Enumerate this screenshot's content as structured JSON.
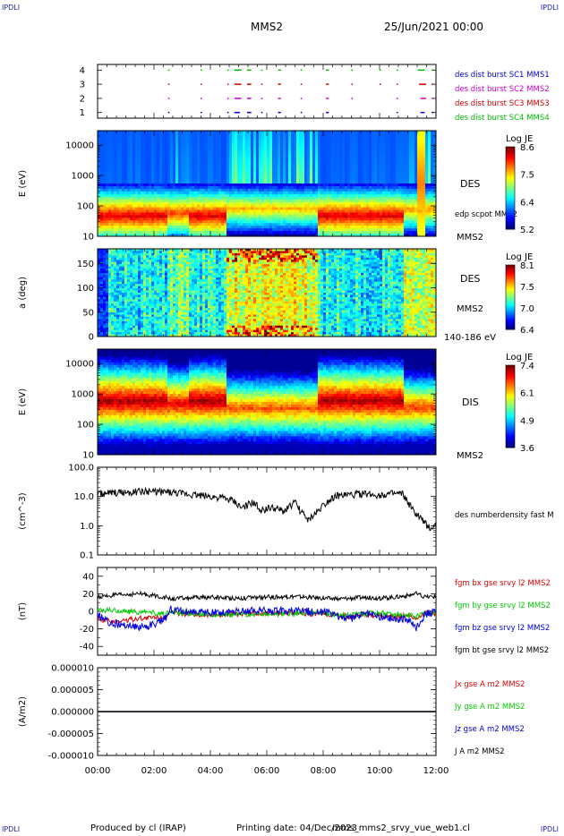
{
  "corner_label": "IPDLI",
  "header": {
    "spacecraft": "MMS2",
    "datetime": "25/Jun/2021 00:00"
  },
  "footer": {
    "producer": "Produced by cl (IRAP)",
    "printing": "Printing date: 04/Dec/2023",
    "file": "mms_mms2_srvy_vue_web1.cl"
  },
  "colors": {
    "mms1": "#0000cc",
    "mms2": "#cc00cc",
    "mms3": "#cc0000",
    "mms4": "#00bb00",
    "bx": "#dd0000",
    "by": "#00cc00",
    "bz": "#0000dd",
    "bt": "#000000"
  },
  "chart_data": [
    {
      "id": "burst",
      "type": "scatter",
      "y_ticks": [
        "1",
        "2",
        "3",
        "4"
      ],
      "ylim": [
        0.6,
        4.4
      ],
      "series": [
        {
          "name": "des dist burst SC1 MMS1",
          "level": 1,
          "color": "#0000cc",
          "segments": [
            [
              2.5,
              2.55
            ],
            [
              3.65,
              3.7
            ],
            [
              4.6,
              4.65
            ],
            [
              4.85,
              5.05
            ],
            [
              5.3,
              5.45
            ],
            [
              5.8,
              5.85
            ],
            [
              6.4,
              6.5
            ],
            [
              7.2,
              7.25
            ],
            [
              8.1,
              8.2
            ],
            [
              10.6,
              10.65
            ],
            [
              11.45,
              11.6
            ],
            [
              11.85,
              11.9
            ]
          ]
        },
        {
          "name": "des dist burst SC2 MMS2",
          "level": 2,
          "color": "#cc00cc",
          "segments": [
            [
              2.5,
              2.55
            ],
            [
              3.65,
              3.7
            ],
            [
              4.6,
              4.65
            ],
            [
              4.85,
              5.1
            ],
            [
              5.3,
              5.45
            ],
            [
              5.8,
              5.85
            ],
            [
              6.4,
              6.5
            ],
            [
              7.2,
              7.25
            ],
            [
              8.1,
              8.2
            ],
            [
              9.0,
              9.05
            ],
            [
              10.6,
              10.65
            ],
            [
              11.45,
              11.65
            ],
            [
              11.85,
              11.9
            ]
          ]
        },
        {
          "name": "des dist burst SC3 MMS3",
          "level": 3,
          "color": "#cc0000",
          "segments": [
            [
              2.5,
              2.55
            ],
            [
              3.65,
              3.7
            ],
            [
              4.6,
              4.65
            ],
            [
              4.85,
              5.1
            ],
            [
              5.3,
              5.45
            ],
            [
              5.8,
              5.85
            ],
            [
              6.4,
              6.5
            ],
            [
              7.2,
              7.25
            ],
            [
              8.1,
              8.2
            ],
            [
              9.0,
              9.05
            ],
            [
              10.0,
              10.05
            ],
            [
              10.6,
              10.65
            ],
            [
              11.4,
              11.65
            ],
            [
              11.85,
              11.9
            ]
          ]
        },
        {
          "name": "des dist burst SC4 MMS4",
          "level": 4,
          "color": "#00bb00",
          "segments": [
            [
              2.5,
              2.55
            ],
            [
              3.65,
              3.7
            ],
            [
              4.6,
              4.65
            ],
            [
              4.85,
              5.1
            ],
            [
              5.3,
              5.45
            ],
            [
              5.8,
              5.85
            ],
            [
              6.4,
              6.5
            ],
            [
              7.2,
              7.25
            ],
            [
              8.1,
              8.2
            ],
            [
              9.0,
              9.05
            ],
            [
              10.0,
              10.05
            ],
            [
              10.6,
              10.65
            ],
            [
              11.35,
              11.6
            ],
            [
              11.85,
              11.9
            ]
          ]
        }
      ]
    },
    {
      "id": "des_energy",
      "type": "heatmap",
      "ylabel": "E (eV)",
      "y_scale": "log",
      "ylim": [
        10,
        30000
      ],
      "y_ticks": [
        "10",
        "100",
        "1000",
        "10000"
      ],
      "right_labels": [
        "DES",
        "edp scpot MMS2",
        "MMS2"
      ],
      "colorbar": {
        "title": "Log JE",
        "ticks": [
          "8.6",
          "7.5",
          "6.4",
          "5.2"
        ],
        "min": 5.2,
        "max": 8.6
      }
    },
    {
      "id": "des_pitch",
      "type": "heatmap",
      "ylabel": "a (deg)",
      "ylim": [
        0,
        180
      ],
      "y_ticks": [
        "0",
        "50",
        "100",
        "150"
      ],
      "right_labels": [
        "DES",
        "MMS2",
        "140-186 eV"
      ],
      "colorbar": {
        "title": "Log JE",
        "ticks": [
          "8.1",
          "7.5",
          "7.0",
          "6.4"
        ],
        "min": 6.4,
        "max": 8.1
      }
    },
    {
      "id": "dis_energy",
      "type": "heatmap",
      "ylabel": "E (eV)",
      "y_scale": "log",
      "ylim": [
        10,
        30000
      ],
      "y_ticks": [
        "10",
        "100",
        "1000",
        "10000"
      ],
      "right_labels": [
        "DIS",
        "MMS2"
      ],
      "colorbar": {
        "title": "Log JE",
        "ticks": [
          "7.4",
          "6.1",
          "4.9",
          "3.6"
        ],
        "min": 3.6,
        "max": 7.4
      }
    },
    {
      "id": "density",
      "type": "line",
      "ylabel": "(cm^-3)",
      "y_scale": "log",
      "ylim": [
        0.1,
        100
      ],
      "y_ticks": [
        "0.1",
        "1.0",
        "10.0",
        "100.0"
      ],
      "series": [
        {
          "name": "des numberdensity fast M",
          "color": "#000000",
          "x": [
            0,
            1,
            2,
            2.5,
            2.8,
            3.2,
            3.6,
            4.0,
            4.4,
            4.8,
            5.1,
            5.5,
            5.8,
            6.2,
            6.6,
            7.0,
            7.2,
            7.5,
            7.8,
            8.1,
            8.4,
            8.8,
            9.2,
            9.6,
            10.0,
            10.4,
            10.8,
            11.0,
            11.2,
            11.4,
            11.6,
            11.8,
            12.0
          ],
          "y": [
            12,
            14,
            15,
            14,
            13,
            12,
            11,
            10,
            9,
            7,
            4,
            6,
            3.5,
            4,
            3,
            6,
            3,
            1.5,
            3,
            6,
            10,
            11,
            12,
            12,
            11,
            12,
            12,
            6,
            3,
            2,
            1.2,
            0.8,
            1
          ]
        }
      ]
    },
    {
      "id": "bfield",
      "type": "line",
      "ylabel": "(nT)",
      "ylim": [
        -50,
        50
      ],
      "y_ticks": [
        "-40",
        "-20",
        "0",
        "20",
        "40"
      ],
      "series": [
        {
          "name": "fgm bx gse srvy l2 MMS2",
          "color": "#dd0000",
          "x": [
            0,
            0.5,
            1,
            1.5,
            2,
            2.4,
            2.6,
            3,
            4,
            5,
            6,
            7,
            8,
            8.5,
            9,
            9.5,
            10,
            10.5,
            11,
            11.3,
            11.6,
            12
          ],
          "y": [
            -8,
            -12,
            -10,
            -8,
            -7,
            -6,
            -2,
            -3,
            -4,
            -3,
            -2,
            -2,
            -3,
            -5,
            -6,
            -4,
            -5,
            -6,
            -4,
            -8,
            -2,
            -3
          ]
        },
        {
          "name": "fgm by gse srvy l2 MMS2",
          "color": "#00cc00",
          "x": [
            0,
            0.5,
            1,
            1.5,
            2,
            2.4,
            2.6,
            3,
            4,
            5,
            6,
            7,
            8,
            8.5,
            9,
            9.5,
            10,
            10.5,
            11,
            11.3,
            11.6,
            12
          ],
          "y": [
            2,
            1,
            0,
            -1,
            -2,
            -3,
            -1,
            -2,
            -3,
            -4,
            -3,
            -3,
            -2,
            -5,
            -4,
            -3,
            -2,
            -3,
            -4,
            -6,
            -3,
            -2
          ]
        },
        {
          "name": "fgm bz gse srvy l2 MMS2",
          "color": "#0000dd",
          "x": [
            0,
            0.5,
            1,
            1.5,
            2,
            2.4,
            2.6,
            3,
            4,
            5,
            6,
            7,
            8,
            8.5,
            9,
            9.5,
            10,
            10.5,
            11,
            11.3,
            11.6,
            12
          ],
          "y": [
            -5,
            -14,
            -16,
            -18,
            -15,
            -8,
            2,
            0,
            -2,
            0,
            1,
            0,
            0,
            -6,
            -8,
            -2,
            -6,
            -8,
            -10,
            -18,
            -4,
            0
          ]
        },
        {
          "name": "fgm bt gse srvy l2 MMS2",
          "color": "#000000",
          "x": [
            0,
            0.5,
            1,
            1.5,
            2,
            2.4,
            2.6,
            3,
            4,
            5,
            6,
            7,
            8,
            8.5,
            9,
            9.5,
            10,
            10.5,
            11,
            11.3,
            11.6,
            12
          ],
          "y": [
            16,
            18,
            19,
            20,
            18,
            16,
            14,
            15,
            16,
            15,
            16,
            17,
            15,
            14,
            15,
            16,
            15,
            16,
            18,
            20,
            16,
            17
          ]
        }
      ]
    },
    {
      "id": "current",
      "type": "line",
      "ylabel": "(A/m2)",
      "ylim": [
        -1e-05,
        1e-05
      ],
      "y_ticks": [
        "-0.000010",
        "-0.000005",
        "0.000000",
        "0.000005",
        "0.000010"
      ],
      "x_ticks": [
        "00:00",
        "02:00",
        "04:00",
        "06:00",
        "08:00",
        "10:00",
        "12:00"
      ],
      "xlim": [
        0,
        12
      ],
      "series": [
        {
          "name": "Jx gse A m2 MMS2",
          "color": "#dd0000",
          "x": [
            0,
            12
          ],
          "y": [
            0,
            0
          ]
        },
        {
          "name": "Jy gse A m2 MMS2",
          "color": "#00cc00",
          "x": [
            0,
            12
          ],
          "y": [
            0,
            0
          ]
        },
        {
          "name": "Jz gse A m2 MMS2",
          "color": "#0000dd",
          "x": [
            0,
            12
          ],
          "y": [
            0,
            0
          ]
        },
        {
          "name": "J A m2 MMS2",
          "color": "#000000",
          "x": [
            0,
            12
          ],
          "y": [
            0,
            0
          ]
        }
      ]
    }
  ]
}
